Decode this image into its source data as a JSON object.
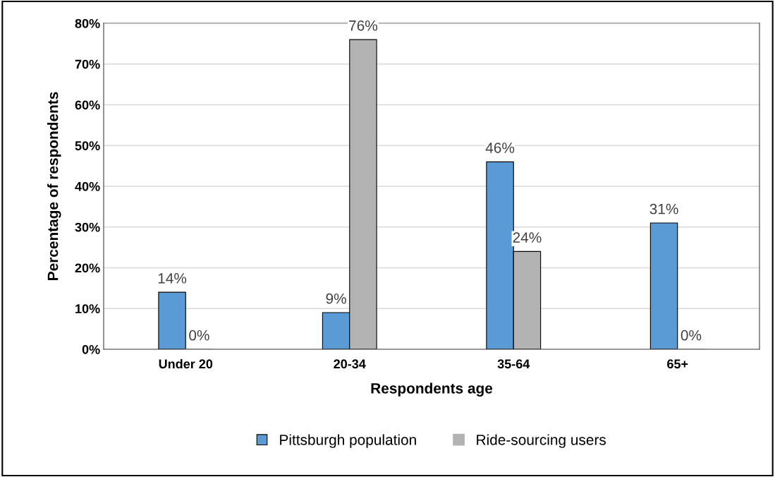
{
  "chart_data": {
    "type": "bar",
    "xlabel": "Respondents age",
    "ylabel": "Percentage of respondents",
    "categories": [
      "Under 20",
      "20-34",
      "35-64",
      "65+"
    ],
    "series": [
      {
        "name": "Pittsburgh population",
        "color": "#5b9bd5",
        "values": [
          14,
          9,
          46,
          31
        ],
        "value_labels": [
          "14%",
          "9%",
          "46%",
          "31%"
        ]
      },
      {
        "name": "Ride-sourcing users",
        "color": "#b3b3b3",
        "values": [
          0,
          76,
          24,
          0
        ],
        "value_labels": [
          "0%",
          "76%",
          "24%",
          "0%"
        ]
      }
    ],
    "ylim": [
      0,
      80
    ],
    "yticks": [
      {
        "value": 0,
        "label": "0%"
      },
      {
        "value": 10,
        "label": "10%"
      },
      {
        "value": 20,
        "label": "20%"
      },
      {
        "value": 30,
        "label": "30%"
      },
      {
        "value": 40,
        "label": "40%"
      },
      {
        "value": 50,
        "label": "50%"
      },
      {
        "value": 60,
        "label": "60%"
      },
      {
        "value": 70,
        "label": "70%"
      },
      {
        "value": 80,
        "label": "80%"
      }
    ],
    "grid": "y",
    "legend": "bottom"
  }
}
